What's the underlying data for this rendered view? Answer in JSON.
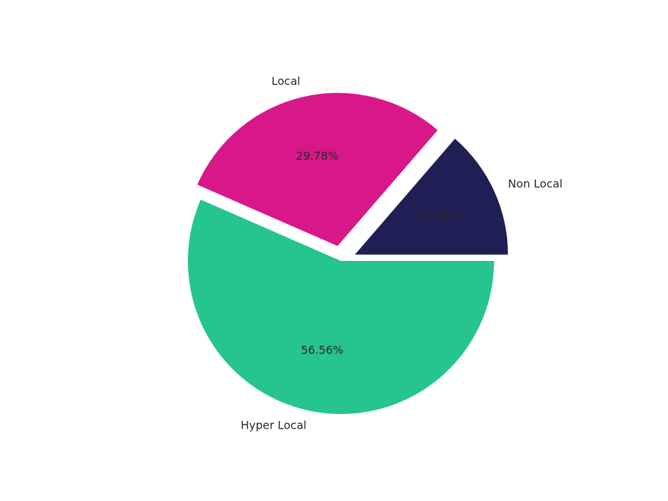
{
  "chart_data": {
    "type": "pie",
    "categories": [
      "Non Local",
      "Local",
      "Hyper Local"
    ],
    "values": [
      13.66,
      29.78,
      56.56
    ],
    "value_labels": [
      "13.66%",
      "29.78%",
      "56.56%"
    ],
    "colors": [
      "#1f1f55",
      "#d81888",
      "#26c491"
    ],
    "explode": [
      0.1,
      0.1,
      0
    ]
  }
}
